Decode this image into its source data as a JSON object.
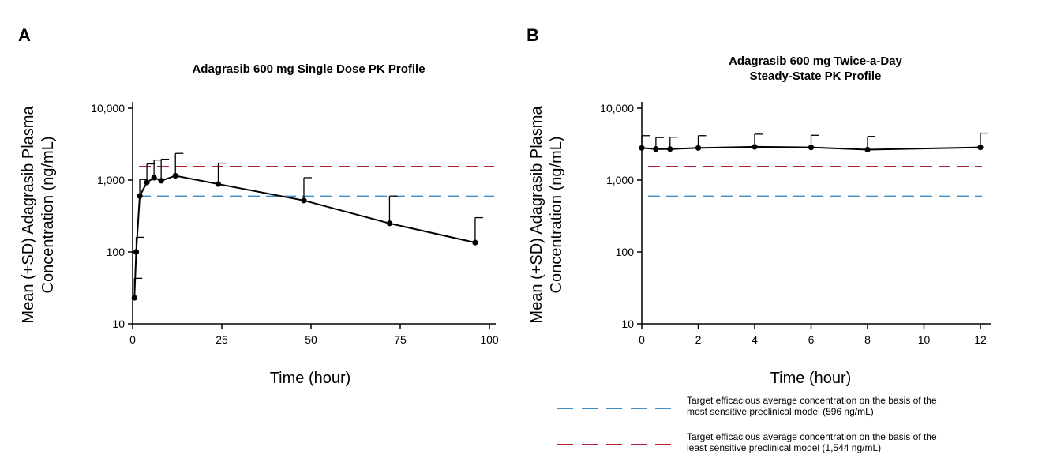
{
  "chart_data": [
    {
      "panel": "A",
      "type": "line",
      "title": "Adagrasib 600 mg Single Dose PK Profile",
      "xlabel": "Time (hour)",
      "ylabel": "Mean (+SD) Adagrasib Plasma Concentration (ng/mL)",
      "ylabel_lines": [
        "Mean (+SD) Adagrasib Plasma",
        "Concentration (ng/mL)"
      ],
      "y_scale": "log",
      "xlim": [
        0,
        100
      ],
      "ylim": [
        10,
        10000
      ],
      "x_ticks": [
        "0",
        "25",
        "50",
        "75",
        "100"
      ],
      "y_ticks": [
        "10",
        "100",
        "1,000",
        "10,000"
      ],
      "series": [
        {
          "x": [
            0.5,
            1,
            2,
            4,
            6,
            8,
            12,
            24,
            48,
            72,
            96
          ],
          "y": [
            23,
            100,
            600,
            930,
            1080,
            980,
            1150,
            880,
            520,
            250,
            135
          ],
          "y_plus_sd": [
            43,
            160,
            1020,
            1680,
            1900,
            1950,
            2350,
            1720,
            1080,
            600,
            300
          ]
        }
      ],
      "reference_lines": [
        {
          "y": 596,
          "color": "#3E8EC4"
        },
        {
          "y": 1544,
          "color": "#B22234"
        }
      ],
      "grid": false
    },
    {
      "panel": "B",
      "type": "line",
      "title_lines": [
        "Adagrasib 600 mg Twice-a-Day",
        "Steady-State PK Profile"
      ],
      "xlabel": "Time (hour)",
      "ylabel": "Mean (+SD) Adagrasib Plasma Concentration (ng/mL)",
      "ylabel_lines": [
        "Mean (+SD) Adagrasib Plasma",
        "Concentration (ng/mL)"
      ],
      "y_scale": "log",
      "xlim": [
        0,
        12
      ],
      "ylim": [
        10,
        10000
      ],
      "x_ticks": [
        "0",
        "2",
        "4",
        "6",
        "8",
        "10",
        "12"
      ],
      "y_ticks": [
        "10",
        "100",
        "1,000",
        "10,000"
      ],
      "series": [
        {
          "x": [
            0,
            0.5,
            1,
            2,
            4,
            6,
            8,
            12
          ],
          "y": [
            2800,
            2700,
            2700,
            2800,
            2900,
            2850,
            2650,
            2850
          ],
          "y_plus_sd": [
            4150,
            3900,
            3950,
            4150,
            4350,
            4200,
            4050,
            4500
          ]
        }
      ],
      "reference_lines": [
        {
          "y": 596,
          "color": "#3E8EC4"
        },
        {
          "y": 1544,
          "color": "#B22234"
        }
      ],
      "grid": false
    }
  ],
  "legend": {
    "placement": "bottom-right",
    "items": [
      {
        "color": "#3E8EC4",
        "lines": [
          "Target efficacious average concentration on the basis of the",
          "most sensitive preclinical model (596 ng/mL)"
        ]
      },
      {
        "color": "#B22234",
        "lines": [
          "Target efficacious average concentration on the basis of the",
          "least sensitive preclinical model (1,544 ng/mL)"
        ]
      }
    ]
  }
}
